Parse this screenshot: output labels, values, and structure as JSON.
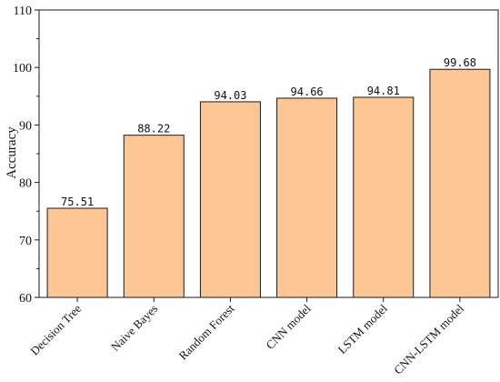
{
  "chart_data": {
    "type": "bar",
    "title": "",
    "xlabel": "",
    "ylabel": "Accuracy",
    "ylim": [
      60,
      110
    ],
    "yticks": [
      60,
      70,
      80,
      90,
      100,
      110
    ],
    "categories": [
      "Decision Tree",
      "Naive Bayes",
      "Random Forest",
      "CNN model",
      "LSTM model",
      "CNN-LSTM model"
    ],
    "values": [
      75.51,
      88.22,
      94.03,
      94.66,
      94.81,
      99.68
    ],
    "value_labels": [
      "75.51",
      "88.22",
      "94.03",
      "94.66",
      "94.81",
      "99.68"
    ],
    "grid": false,
    "legend": "none",
    "colors": {
      "bar_fill": "#fcc794",
      "bar_stroke": "#1a1a1a",
      "axis": "#1a1a1a"
    }
  }
}
